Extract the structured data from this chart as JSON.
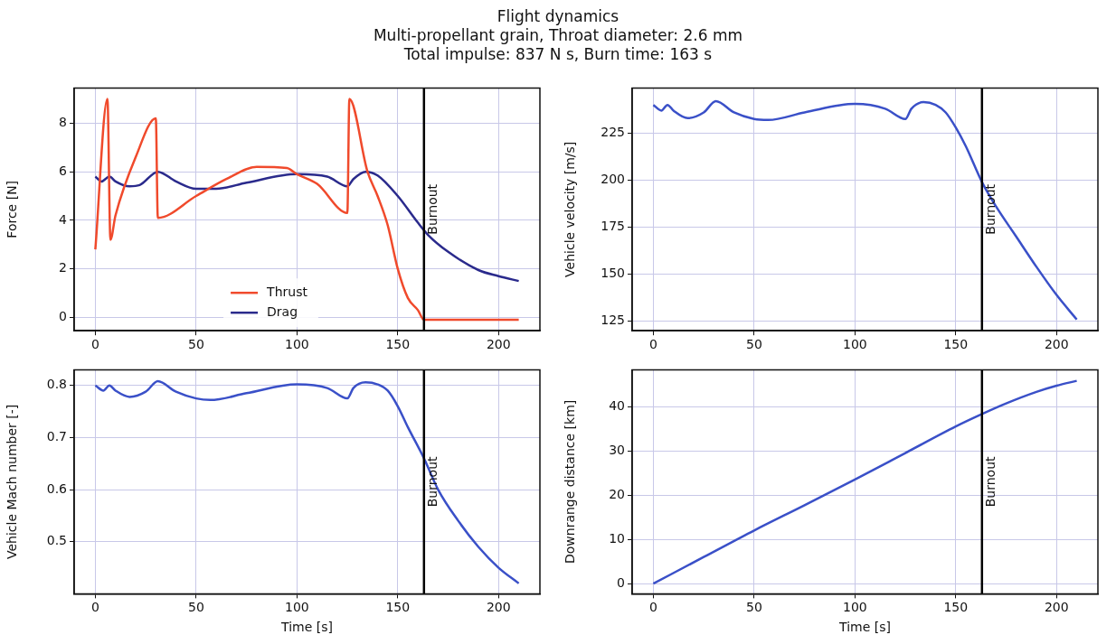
{
  "chart_data": [
    {
      "type": "line",
      "title": "Flight dynamics",
      "subtitle": "Multi-propellant grain, Throat diameter: 2.6 mm\nTotal impulse: 837 N s, Burn time: 163 s",
      "ylabel": "Force [N]",
      "xlim": [
        -10.5,
        220.5
      ],
      "xticks": [
        0,
        50,
        100,
        150,
        200
      ],
      "ylim": [
        -0.55,
        9.45
      ],
      "yticks": [
        0,
        2,
        4,
        6,
        8
      ],
      "grid": true,
      "legend": "bottom",
      "ref_lines": [
        {
          "axis": "x",
          "value": 163,
          "label": "Burnout",
          "color": "#000000"
        }
      ],
      "series": [
        {
          "name": "Thrust",
          "color": "#f04a2c",
          "x": [
            0,
            6,
            7.5,
            10,
            20,
            30,
            31,
            50,
            65,
            80,
            95,
            100,
            110,
            125,
            126,
            135,
            140,
            145,
            150,
            155,
            160,
            163,
            210
          ],
          "values": [
            2.8,
            9.0,
            3.2,
            4.2,
            6.6,
            8.2,
            4.1,
            5.0,
            5.7,
            6.2,
            6.15,
            5.9,
            5.5,
            4.3,
            9.0,
            6.0,
            5.0,
            3.8,
            2.0,
            0.8,
            0.3,
            -0.1,
            -0.1
          ]
        },
        {
          "name": "Drag",
          "color": "#2a2a8c",
          "x": [
            0,
            3,
            7,
            10,
            17,
            22,
            31,
            40,
            50,
            60,
            75,
            100,
            115,
            125,
            128,
            134,
            140,
            150,
            160,
            165,
            175,
            190,
            200,
            210
          ],
          "values": [
            5.8,
            5.6,
            5.8,
            5.6,
            5.4,
            5.45,
            6.0,
            5.6,
            5.3,
            5.3,
            5.55,
            5.9,
            5.8,
            5.4,
            5.7,
            6.0,
            5.85,
            5.0,
            3.9,
            3.4,
            2.7,
            1.95,
            1.7,
            1.5
          ]
        }
      ]
    },
    {
      "type": "line",
      "ylabel": "Vehicle velocity [m/s]",
      "xlim": [
        -10.5,
        220.5
      ],
      "xticks": [
        0,
        50,
        100,
        150,
        200
      ],
      "ylim": [
        120,
        249
      ],
      "yticks": [
        125,
        150,
        175,
        200,
        225
      ],
      "grid": true,
      "ref_lines": [
        {
          "axis": "x",
          "value": 163,
          "label": "Burnout",
          "color": "#000000"
        }
      ],
      "series": [
        {
          "color": "#3a50c8",
          "x": [
            0,
            4,
            7,
            10,
            17,
            25,
            31,
            40,
            50,
            57,
            75,
            100,
            115,
            125,
            128,
            134,
            140,
            145,
            150,
            155,
            163,
            170,
            180,
            190,
            200,
            210
          ],
          "values": [
            240,
            237,
            240,
            237,
            233,
            236,
            242,
            236,
            232.5,
            232,
            236,
            240.5,
            238,
            232.5,
            238,
            241.5,
            240,
            236,
            228,
            218,
            199,
            186,
            170,
            154,
            139,
            126
          ]
        }
      ]
    },
    {
      "type": "line",
      "ylabel": "Vehicle Mach number [-]",
      "xlabel": "Time [s]",
      "xlim": [
        -10.5,
        220.5
      ],
      "xticks": [
        0,
        50,
        100,
        150,
        200
      ],
      "ylim": [
        0.4,
        0.83
      ],
      "yticks": [
        0.5,
        0.6,
        0.7,
        0.8
      ],
      "grid": true,
      "ref_lines": [
        {
          "axis": "x",
          "value": 163,
          "label": "Burnout",
          "color": "#000000"
        }
      ],
      "series": [
        {
          "color": "#3a50c8",
          "x": [
            0,
            4,
            7,
            10,
            17,
            25,
            31,
            40,
            50,
            57,
            75,
            100,
            115,
            125,
            128,
            134,
            140,
            145,
            150,
            155,
            163,
            170,
            180,
            190,
            200,
            210
          ],
          "values": [
            0.8,
            0.79,
            0.8,
            0.79,
            0.778,
            0.788,
            0.808,
            0.788,
            0.775,
            0.772,
            0.785,
            0.802,
            0.795,
            0.775,
            0.795,
            0.806,
            0.802,
            0.79,
            0.76,
            0.72,
            0.66,
            0.6,
            0.54,
            0.49,
            0.45,
            0.42
          ]
        }
      ]
    },
    {
      "type": "line",
      "ylabel": "Downrange distance [km]",
      "xlabel": "Time [s]",
      "xlim": [
        -10.5,
        220.5
      ],
      "xticks": [
        0,
        50,
        100,
        150,
        200
      ],
      "ylim": [
        -2.3,
        48.3
      ],
      "yticks": [
        0,
        10,
        20,
        30,
        40
      ],
      "grid": true,
      "ref_lines": [
        {
          "axis": "x",
          "value": 163,
          "label": "Burnout",
          "color": "#000000"
        }
      ],
      "series": [
        {
          "color": "#3a50c8",
          "x": [
            0,
            25,
            50,
            75,
            100,
            125,
            150,
            163,
            175,
            190,
            200,
            210
          ],
          "values": [
            0,
            6,
            12,
            17.7,
            23.5,
            29.5,
            35.5,
            38.3,
            40.7,
            43.3,
            44.7,
            45.8
          ]
        }
      ]
    }
  ]
}
